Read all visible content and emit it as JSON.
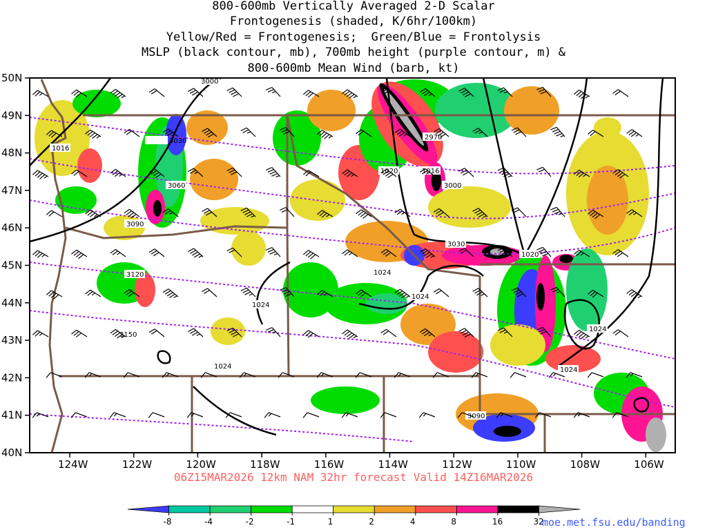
{
  "titles": [
    "800-600mb Vertically Averaged 2-D Scalar",
    "Frontogenesis (shaded, K/6hr/100km)",
    "Yellow/Red = Frontogenesis;  Green/Blue = Frontolysis",
    "MSLP (black contour, mb), 700mb height (purple contour, m) &",
    "800-600mb Mean Wind (barb, kt)"
  ],
  "subtitle": "06Z15MAR2026 12km NAM 32hr forecast Valid 14Z16MAR2026",
  "credit": "moe.met.fsu.edu/banding",
  "lat_labels": [
    "50N",
    "49N",
    "48N",
    "47N",
    "46N",
    "45N",
    "44N",
    "43N",
    "42N",
    "41N",
    "40N"
  ],
  "lon_labels": [
    "124W",
    "122W",
    "120W",
    "118W",
    "116W",
    "114W",
    "112W",
    "110W",
    "108W",
    "106W"
  ],
  "colorbar": {
    "ticks": [
      "-8",
      "-4",
      "-2",
      "-1",
      "1",
      "2",
      "4",
      "8",
      "16",
      "32"
    ],
    "colors": [
      "#3c3cff",
      "#00c8a0",
      "#20d070",
      "#00dc00",
      "#ffffff",
      "#e6dc32",
      "#f0a028",
      "#ff5050",
      "#ff1493",
      "#000000",
      "#b0b0b0"
    ]
  },
  "colors": {
    "frontogenesis_weak": "#e6dc32",
    "frontogenesis_mod": "#f0a028",
    "frontogenesis_strong": "#ff5050",
    "frontogenesis_vstrong": "#ff1493",
    "frontolysis_weak": "#00dc00",
    "frontolysis_mod": "#20d070",
    "frontolysis_strong": "#00c8a0",
    "frontolysis_vstrong": "#3c3cff",
    "mslp_contour": "#000000",
    "height_contour": "#a020f0",
    "borders": "#7a5a48"
  },
  "mslp_labels": [
    "1016",
    "1020",
    "1020",
    "1016",
    "1024",
    "1024",
    "1024",
    "1024",
    "1024",
    "1024",
    "1020"
  ],
  "height_labels": [
    "3000",
    "3030",
    "3060",
    "3090",
    "3120",
    "3150",
    "2970",
    "3000",
    "3030",
    "3090"
  ]
}
